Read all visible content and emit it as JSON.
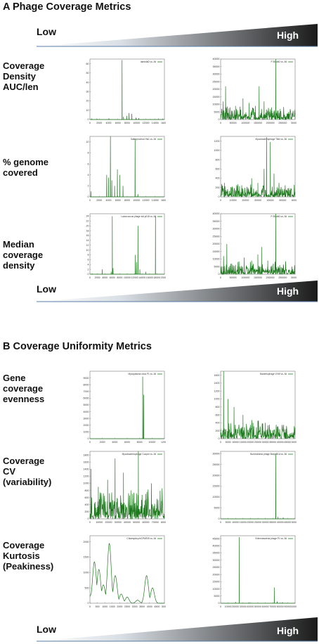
{
  "sections": [
    {
      "letter": "A",
      "title": "Phage Coverage Metrics",
      "scale": {
        "low": "Low",
        "high": "High"
      },
      "rows": [
        {
          "label": "Coverage\nDensity\nAUC/len"
        },
        {
          "label": "% genome\ncovered"
        },
        {
          "label": "Median\ncoverage\ndensity"
        }
      ],
      "bottom_scale": {
        "low": "Low",
        "high": "High"
      }
    },
    {
      "letter": "B",
      "title": "Coverage Uniformity Metrics",
      "rows": [
        {
          "label": "Gene\ncoverage\nevenness"
        },
        {
          "label": "Coverage\nCV\n(variability)"
        },
        {
          "label": "Coverage\nKurtosis\n(Peakiness)"
        }
      ],
      "bottom_scale": {
        "low": "Low",
        "high": "High"
      }
    }
  ],
  "colors": {
    "series": "#1f7a1f",
    "scale_dark": "#222222",
    "scale_light": "#ffffff"
  },
  "chart_data": [
    {
      "type": "line",
      "title": "lambdaD vs. All",
      "xlim": [
        0,
        16000
      ],
      "ylim": [
        0,
        65
      ],
      "xticks": [
        "0",
        "2000",
        "4000",
        "6000",
        "8000",
        "10000",
        "12000",
        "14000",
        "16000"
      ],
      "yticks": [
        "0",
        "10",
        "20",
        "30",
        "40",
        "50",
        "60"
      ],
      "spikes": [
        [
          400,
          1
        ],
        [
          1500,
          0.5
        ],
        [
          4100,
          1
        ],
        [
          6900,
          64
        ],
        [
          7200,
          3
        ],
        [
          7900,
          4
        ],
        [
          8400,
          7
        ],
        [
          9000,
          6
        ],
        [
          9900,
          2
        ],
        [
          10500,
          1.5
        ],
        [
          13000,
          0.5
        ],
        [
          14700,
          1
        ],
        [
          15600,
          0.5
        ]
      ]
    },
    {
      "type": "line",
      "title": "P-50stbD vs. All",
      "xlim": [
        0,
        300000
      ],
      "ylim": [
        0,
        40000
      ],
      "xticks": [
        "0",
        "50000",
        "100000",
        "150000",
        "200000",
        "250000",
        "300000"
      ],
      "yticks": [
        "0",
        "5000",
        "10000",
        "15000",
        "20000",
        "25000",
        "30000",
        "35000",
        "40000"
      ],
      "spikes": [
        [
          10000,
          12000
        ],
        [
          20000,
          22000
        ],
        [
          38000,
          8000
        ],
        [
          60000,
          9000
        ],
        [
          90000,
          14000
        ],
        [
          115000,
          11000
        ],
        [
          140000,
          9000
        ],
        [
          155000,
          22000
        ],
        [
          175000,
          12000
        ],
        [
          205000,
          8000
        ],
        [
          222000,
          40000
        ],
        [
          240000,
          7000
        ],
        [
          262000,
          2000
        ]
      ]
    },
    {
      "type": "line",
      "title": "Salterprovirus His1 vs. All",
      "xlim": [
        0,
        16000
      ],
      "ylim": [
        0,
        11
      ],
      "xticks": [
        "0",
        "2000",
        "4000",
        "6000",
        "8000",
        "10000",
        "12000",
        "14000",
        "16000"
      ],
      "yticks": [
        "0",
        "2",
        "4",
        "6",
        "8",
        "10"
      ],
      "spikes": [
        [
          200,
          1
        ],
        [
          3600,
          4
        ],
        [
          4000,
          3.5
        ],
        [
          4400,
          11
        ],
        [
          4700,
          3
        ],
        [
          5300,
          2
        ],
        [
          5900,
          5
        ],
        [
          6400,
          4
        ],
        [
          7100,
          2
        ],
        [
          9700,
          10.5
        ],
        [
          10300,
          0.5
        ]
      ]
    },
    {
      "type": "line",
      "title": "Mycobacteriophage Tilek vs. All",
      "xlim": [
        0,
        60000
      ],
      "ylim": [
        0,
        1300
      ],
      "xticks": [
        "0",
        "10000",
        "20000",
        "30000",
        "40000",
        "50000",
        "60000"
      ],
      "yticks": [
        "0",
        "200",
        "400",
        "600",
        "800",
        "1000",
        "1200"
      ],
      "spikes": [
        [
          3000,
          300
        ],
        [
          9000,
          200
        ],
        [
          17000,
          250
        ],
        [
          25000,
          400
        ],
        [
          30000,
          300
        ],
        [
          35000,
          600
        ],
        [
          37000,
          1280
        ],
        [
          40000,
          1180
        ],
        [
          43000,
          500
        ],
        [
          47000,
          300
        ],
        [
          52000,
          250
        ],
        [
          56000,
          150
        ]
      ]
    },
    {
      "type": "line",
      "title": "Lactococcus phage sk1p018 vs. All",
      "xlim": [
        0,
        20000
      ],
      "ylim": [
        0,
        25
      ],
      "xticks": [
        "0",
        "2000",
        "4000",
        "6000",
        "8000",
        "10000",
        "12000",
        "14000",
        "16000",
        "18000",
        "20000"
      ],
      "yticks": [
        "0",
        "2",
        "4",
        "6",
        "8",
        "10",
        "12",
        "14",
        "16",
        "18",
        "20",
        "22",
        "24"
      ],
      "spikes": [
        [
          600,
          0.3
        ],
        [
          3300,
          2
        ],
        [
          5700,
          1
        ],
        [
          6000,
          24
        ],
        [
          6200,
          2.5
        ],
        [
          12200,
          8
        ],
        [
          12500,
          5
        ],
        [
          12900,
          20
        ],
        [
          13400,
          2
        ],
        [
          15000,
          1
        ],
        [
          17600,
          24
        ]
      ]
    },
    {
      "type": "line",
      "title": "P-50stbD vs. All",
      "xlim": [
        0,
        300000
      ],
      "ylim": [
        0,
        40000
      ],
      "xticks": [
        "0",
        "50000",
        "100000",
        "150000",
        "200000",
        "250000",
        "300000"
      ],
      "yticks": [
        "0",
        "5000",
        "10000",
        "15000",
        "20000",
        "25000",
        "30000",
        "35000",
        "40000"
      ],
      "spikes": [
        [
          12000,
          12000
        ],
        [
          25000,
          20000
        ],
        [
          45000,
          7000
        ],
        [
          70000,
          8000
        ],
        [
          95000,
          11000
        ],
        [
          125000,
          9000
        ],
        [
          150000,
          13000
        ],
        [
          165000,
          18000
        ],
        [
          190000,
          9000
        ],
        [
          212000,
          7000
        ],
        [
          222000,
          40000
        ],
        [
          238000,
          6000
        ],
        [
          258000,
          2500
        ]
      ]
    },
    {
      "type": "line",
      "title": "Mycoplasma virus P1 vs. All",
      "xlim": [
        0,
        12000
      ],
      "ylim": [
        0,
        10000
      ],
      "xticks": [
        "0",
        "2000",
        "4000",
        "6000",
        "8000",
        "10000",
        "12000"
      ],
      "yticks": [
        "0",
        "1000",
        "2000",
        "3000",
        "4000",
        "5000",
        "6000",
        "7000",
        "8000",
        "9000"
      ],
      "spikes": [
        [
          8500,
          9200
        ],
        [
          8650,
          6500
        ]
      ]
    },
    {
      "type": "line",
      "title": "Bacteriophage VVW vs. All",
      "xlim": [
        0,
        50000
      ],
      "ylim": [
        0,
        1700
      ],
      "xticks": [
        "0",
        "5000",
        "10000",
        "15000",
        "20000",
        "25000",
        "30000",
        "35000",
        "40000",
        "45000",
        "50000"
      ],
      "yticks": [
        "0",
        "200",
        "400",
        "600",
        "800",
        "1000",
        "1200",
        "1400",
        "1600"
      ],
      "spikes": [
        [
          2000,
          1700
        ],
        [
          5000,
          1000
        ],
        [
          9000,
          800
        ],
        [
          15000,
          600
        ],
        [
          20000,
          350
        ],
        [
          25000,
          450
        ],
        [
          30000,
          300
        ],
        [
          38000,
          300
        ],
        [
          44000,
          250
        ]
      ]
    },
    {
      "type": "line",
      "title": "Mycobacteriophage Cooper vs. All",
      "xlim": [
        0,
        80000
      ],
      "ylim": [
        0,
        1900
      ],
      "xticks": [
        "0",
        "10000",
        "20000",
        "30000",
        "40000",
        "50000",
        "60000",
        "70000",
        "80000"
      ],
      "yticks": [
        "0",
        "200",
        "400",
        "600",
        "800",
        "1000",
        "1200",
        "1400",
        "1600",
        "1800"
      ],
      "spikes": [
        [
          1000,
          1400
        ],
        [
          9000,
          900
        ],
        [
          19000,
          1100
        ],
        [
          27000,
          1700
        ],
        [
          36000,
          1300
        ],
        [
          44000,
          800
        ],
        [
          52000,
          1900
        ],
        [
          60000,
          700
        ],
        [
          66000,
          1000
        ]
      ]
    },
    {
      "type": "line",
      "title": "Burkholderia phage Bcep B1A vs. All",
      "xlim": [
        0,
        50000
      ],
      "ylim": [
        0,
        31000
      ],
      "xticks": [
        "0",
        "5000",
        "10000",
        "15000",
        "20000",
        "25000",
        "30000",
        "35000",
        "40000",
        "45000",
        "50000"
      ],
      "yticks": [
        "0",
        "5000",
        "10000",
        "15000",
        "20000",
        "25000",
        "30000"
      ],
      "spikes": [
        [
          37000,
          30000
        ],
        [
          38500,
          900
        ],
        [
          42000,
          600
        ]
      ]
    },
    {
      "type": "line",
      "title": "Chlamydia phiCPAR39 vs. All",
      "xlim": [
        0,
        5000
      ],
      "ylim": [
        0,
        2200
      ],
      "xticks": [
        "0",
        "500",
        "1000",
        "1500",
        "2000",
        "2500",
        "3000",
        "3500",
        "4000",
        "4500",
        "5000"
      ],
      "yticks": [
        "0",
        "500",
        "1000",
        "1500",
        "2000"
      ],
      "spikes": [
        [
          100,
          300
        ],
        [
          300,
          1350
        ],
        [
          600,
          1100
        ],
        [
          900,
          600
        ],
        [
          1300,
          1950
        ],
        [
          1700,
          900
        ],
        [
          2100,
          300
        ],
        [
          2500,
          200
        ],
        [
          3200,
          100
        ],
        [
          3800,
          900
        ],
        [
          4200,
          500
        ]
      ]
    },
    {
      "type": "line",
      "title": "Enterobacteria phage P1 vs. All",
      "xlim": [
        0,
        100000
      ],
      "ylim": [
        0,
        47000
      ],
      "xticks": [
        "0",
        "10000",
        "20000",
        "30000",
        "40000",
        "50000",
        "60000",
        "70000",
        "80000",
        "90000",
        "100000"
      ],
      "yticks": [
        "0",
        "5000",
        "10000",
        "15000",
        "20000",
        "25000",
        "30000",
        "35000",
        "40000",
        "45000"
      ],
      "spikes": [
        [
          20000,
          900
        ],
        [
          25000,
          46000
        ],
        [
          38000,
          600
        ],
        [
          72000,
          11000
        ],
        [
          76000,
          1200
        ],
        [
          83000,
          700
        ]
      ]
    }
  ]
}
